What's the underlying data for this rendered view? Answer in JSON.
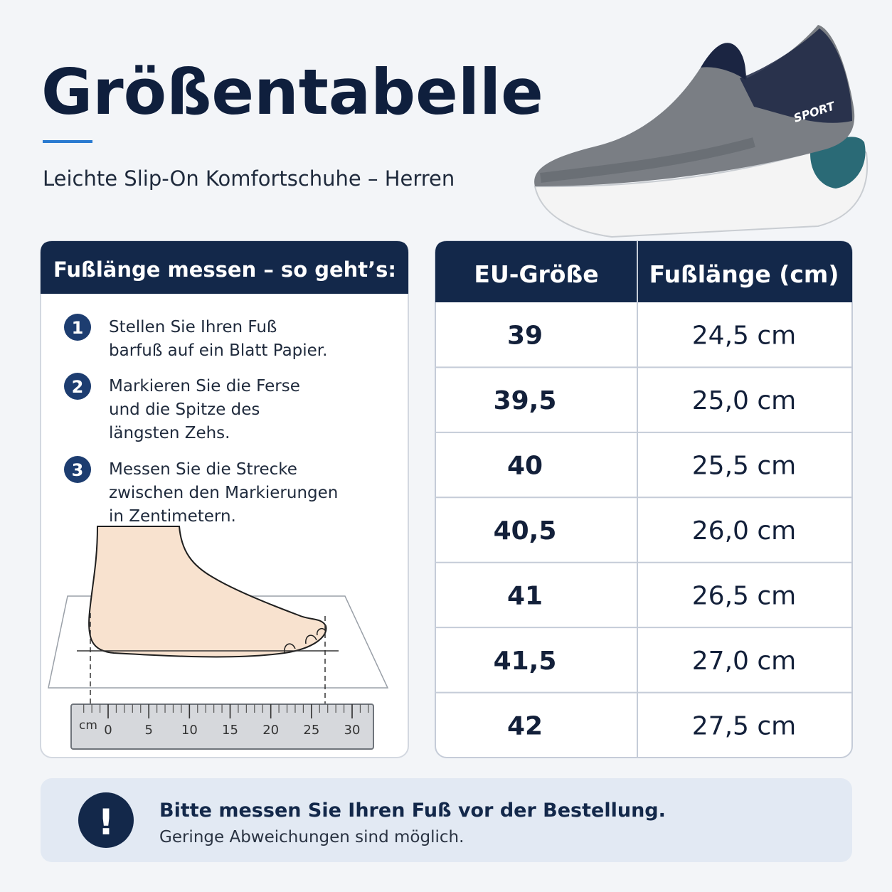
{
  "header": {
    "title": "Größentabelle",
    "subtitle": "Leichte Slip-On Komfortschuhe – Herren"
  },
  "product": {
    "brand_print": "SPORT"
  },
  "instructions": {
    "title": "Fußlänge messen – so geht’s:",
    "steps": [
      {
        "number": 1,
        "lines": [
          "Stellen Sie Ihren Fuß",
          "barfuß auf ein Blatt Papier."
        ]
      },
      {
        "number": 2,
        "lines": [
          "Markieren Sie die Ferse",
          "und die Spitze des",
          "längsten Zehs."
        ]
      },
      {
        "number": 3,
        "lines": [
          "Messen Sie die Strecke",
          "zwischen den Markierungen",
          "in Zentimetern."
        ]
      }
    ],
    "ruler": {
      "unit": "cm",
      "labels": [
        0,
        5,
        10,
        15,
        20,
        25,
        30
      ]
    }
  },
  "table": {
    "headers": [
      "EU-Größe",
      "Fußlänge (cm)"
    ],
    "rows": [
      [
        "39",
        "24,5 cm"
      ],
      [
        "39,5",
        "25,0 cm"
      ],
      [
        "40",
        "25,5 cm"
      ],
      [
        "40,5",
        "26,0 cm"
      ],
      [
        "41",
        "26,5 cm"
      ],
      [
        "41,5",
        "27,0 cm"
      ],
      [
        "42",
        "27,5 cm"
      ]
    ]
  },
  "notice": {
    "icon": "!",
    "title": "Bitte messen Sie Ihren Fuß vor der Bestellung.",
    "text": "Geringe Abweichungen sind möglich."
  }
}
